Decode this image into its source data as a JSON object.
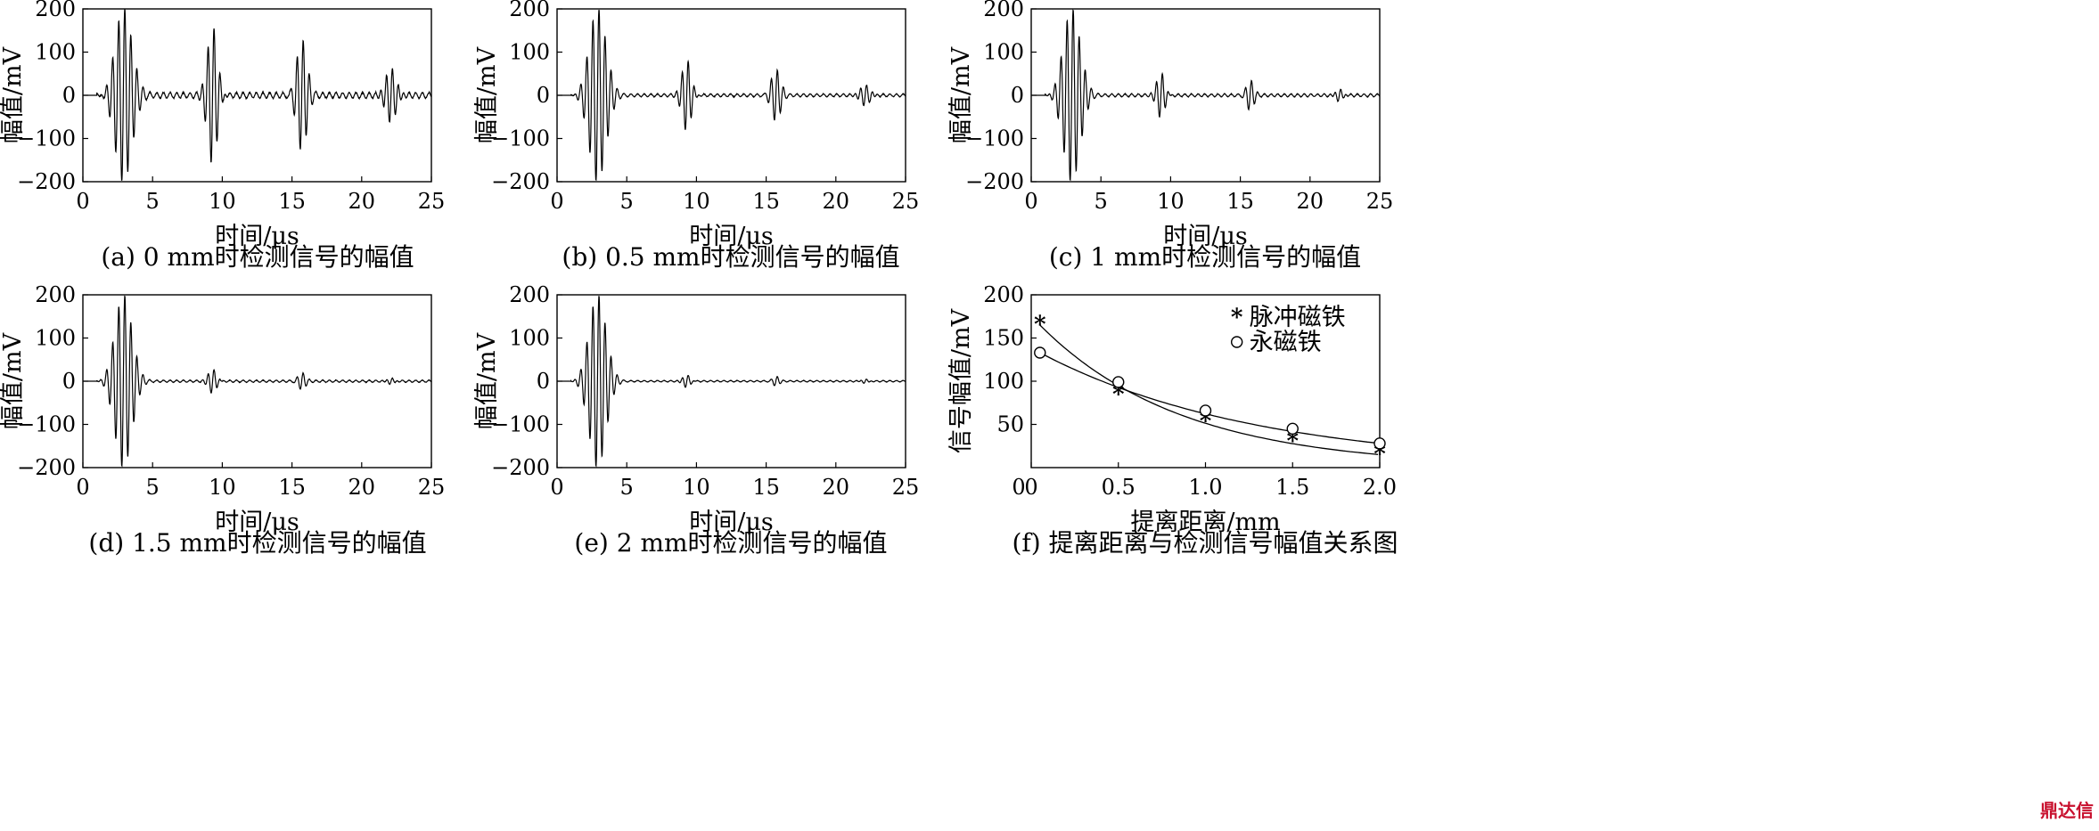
{
  "chart_data": [
    {
      "type": "line",
      "panel": "a",
      "caption": "(a) 0 mm时检测信号的幅值",
      "xlabel": "时间/μs",
      "ylabel": "幅值/mV",
      "xlim": [
        0,
        25
      ],
      "ylim": [
        -200,
        200
      ],
      "xticks": [
        "0",
        "5",
        "10",
        "15",
        "20",
        "25"
      ],
      "yticks": [
        "−200",
        "−100",
        "0",
        "100",
        "200"
      ],
      "signal_start": 1,
      "bursts": [
        {
          "center": 2.9,
          "amplitude": 200,
          "duration": 3.6
        },
        {
          "center": 9.3,
          "amplitude": 165,
          "duration": 2.2
        },
        {
          "center": 15.7,
          "amplitude": 125,
          "duration": 2.2
        },
        {
          "center": 22.1,
          "amplitude": 70,
          "duration": 2.4
        }
      ],
      "noise_mv": 8
    },
    {
      "type": "line",
      "panel": "b",
      "caption": "(b) 0.5 mm时检测信号的幅值",
      "xlabel": "时间/μs",
      "ylabel": "幅值/mV",
      "xlim": [
        0,
        25
      ],
      "ylim": [
        -200,
        200
      ],
      "xticks": [
        "0",
        "5",
        "10",
        "15",
        "20",
        "25"
      ],
      "yticks": [
        "−200",
        "−100",
        "0",
        "100",
        "200"
      ],
      "signal_start": 1,
      "bursts": [
        {
          "center": 2.9,
          "amplitude": 200,
          "duration": 3.6
        },
        {
          "center": 9.3,
          "amplitude": 85,
          "duration": 2.0
        },
        {
          "center": 15.7,
          "amplitude": 58,
          "duration": 2.0
        },
        {
          "center": 22.1,
          "amplitude": 28,
          "duration": 2.2
        }
      ],
      "noise_mv": 4
    },
    {
      "type": "line",
      "panel": "c",
      "caption": "(c) 1 mm时检测信号的幅值",
      "xlabel": "时间/μs",
      "ylabel": "幅值/mV",
      "xlim": [
        0,
        25
      ],
      "ylim": [
        -200,
        200
      ],
      "xticks": [
        "0",
        "5",
        "10",
        "15",
        "20",
        "25"
      ],
      "yticks": [
        "−200",
        "−100",
        "0",
        "100",
        "200"
      ],
      "signal_start": 1,
      "bursts": [
        {
          "center": 2.9,
          "amplitude": 200,
          "duration": 3.6
        },
        {
          "center": 9.3,
          "amplitude": 55,
          "duration": 1.8
        },
        {
          "center": 15.7,
          "amplitude": 33,
          "duration": 1.6
        },
        {
          "center": 22.1,
          "amplitude": 18,
          "duration": 1.6
        }
      ],
      "noise_mv": 4
    },
    {
      "type": "line",
      "panel": "d",
      "caption": "(d) 1.5 mm时检测信号的幅值",
      "xlabel": "时间/μs",
      "ylabel": "幅值/mV",
      "xlim": [
        0,
        25
      ],
      "ylim": [
        -200,
        200
      ],
      "xticks": [
        "0",
        "5",
        "10",
        "15",
        "20",
        "25"
      ],
      "yticks": [
        "−200",
        "−100",
        "0",
        "100",
        "200"
      ],
      "signal_start": 1,
      "bursts": [
        {
          "center": 2.9,
          "amplitude": 200,
          "duration": 3.6
        },
        {
          "center": 9.3,
          "amplitude": 30,
          "duration": 1.8
        },
        {
          "center": 15.7,
          "amplitude": 18,
          "duration": 1.6
        },
        {
          "center": 22.1,
          "amplitude": 10,
          "duration": 1.6
        }
      ],
      "noise_mv": 3
    },
    {
      "type": "line",
      "panel": "e",
      "caption": "(e) 2 mm时检测信号的幅值",
      "xlabel": "时间/μs",
      "ylabel": "幅值/mV",
      "xlim": [
        0,
        25
      ],
      "ylim": [
        -200,
        200
      ],
      "xticks": [
        "0",
        "5",
        "10",
        "15",
        "20",
        "25"
      ],
      "yticks": [
        "−200",
        "−100",
        "0",
        "100",
        "200"
      ],
      "signal_start": 1,
      "bursts": [
        {
          "center": 2.9,
          "amplitude": 200,
          "duration": 3.6
        },
        {
          "center": 9.3,
          "amplitude": 16,
          "duration": 1.6
        },
        {
          "center": 15.7,
          "amplitude": 10,
          "duration": 1.4
        },
        {
          "center": 22.1,
          "amplitude": 7,
          "duration": 1.4
        }
      ],
      "noise_mv": 2
    },
    {
      "type": "scatter",
      "panel": "f",
      "caption": "(f) 提离距离与检测信号幅值关系图",
      "xlabel": "提离距离/mm",
      "ylabel": "信号幅值/mV",
      "xlim": [
        0,
        2.0
      ],
      "ylim": [
        0,
        200
      ],
      "xticks": [
        "0",
        "0.5",
        "1.0",
        "1.5",
        "2.0"
      ],
      "yticks": [
        "50",
        "100",
        "150",
        "200"
      ],
      "legend_position": "top-right",
      "series": [
        {
          "name": "脉冲磁铁",
          "marker": "star",
          "x": [
            0.05,
            0.5,
            1.0,
            1.5,
            2.0
          ],
          "y": [
            165,
            84,
            53,
            30,
            15
          ],
          "fit_decay": 1.2
        },
        {
          "name": "永磁铁",
          "marker": "circle",
          "x": [
            0.05,
            0.5,
            1.0,
            1.5,
            2.0
          ],
          "y": [
            133,
            99,
            66,
            45,
            28
          ],
          "fit_decay": 0.8
        }
      ]
    }
  ],
  "watermark": "鼎达信"
}
